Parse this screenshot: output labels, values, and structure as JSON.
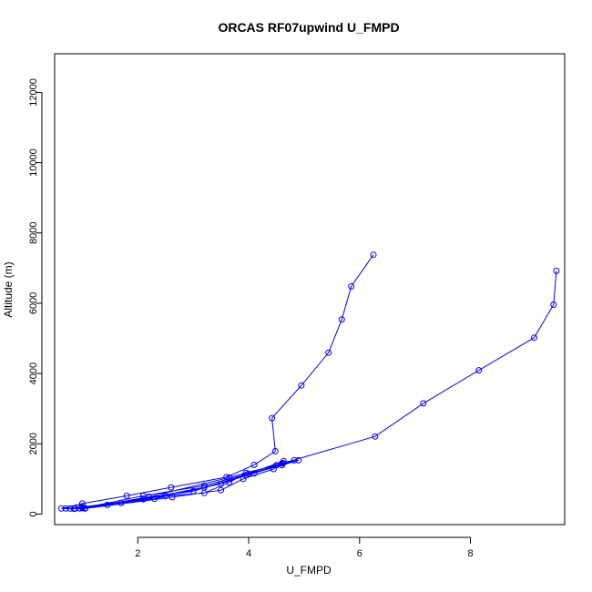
{
  "chart_data": {
    "type": "scatter",
    "title": "ORCAS RF07upwind U_FMPD",
    "xlabel": "U_FMPD",
    "ylabel": "Altitude (m)",
    "xlim": [
      0.5,
      9.7
    ],
    "ylim": [
      -300,
      13100
    ],
    "x_ticks": [
      2,
      4,
      6,
      8
    ],
    "y_ticks": [
      0,
      2000,
      4000,
      6000,
      8000,
      10000,
      12000
    ],
    "series": [
      {
        "color": "#0000ff",
        "line": true,
        "marker": "open-circle",
        "points": [
          [
            6.25,
            7380
          ],
          [
            5.85,
            6480
          ],
          [
            5.68,
            5540
          ],
          [
            5.44,
            4590
          ],
          [
            4.95,
            3660
          ],
          [
            4.42,
            2730
          ],
          [
            4.48,
            1790
          ],
          [
            4.1,
            1400
          ],
          [
            3.6,
            1050
          ],
          [
            2.6,
            760
          ],
          [
            1.8,
            520
          ],
          [
            1.0,
            300
          ],
          [
            0.62,
            160
          ],
          [
            0.85,
            150
          ],
          [
            1.45,
            260
          ],
          [
            2.1,
            420
          ],
          [
            3.0,
            650
          ],
          [
            3.95,
            1110
          ],
          [
            4.6,
            1390
          ],
          [
            4.9,
            1530
          ],
          [
            4.5,
            1390
          ],
          [
            3.5,
            860
          ],
          [
            2.3,
            430
          ],
          [
            1.0,
            190
          ],
          [
            0.7,
            160
          ],
          [
            1.05,
            160
          ],
          [
            2.62,
            480
          ],
          [
            3.5,
            680
          ],
          [
            3.9,
            1000
          ],
          [
            4.45,
            1280
          ],
          [
            4.63,
            1510
          ],
          [
            4.0,
            1150
          ],
          [
            3.2,
            810
          ],
          [
            2.1,
            520
          ],
          [
            1.0,
            170
          ],
          [
            0.78,
            155
          ],
          [
            1.0,
            200
          ],
          [
            2.5,
            510
          ],
          [
            3.2,
            600
          ],
          [
            3.65,
            900
          ],
          [
            3.95,
            1170
          ],
          [
            4.6,
            1440
          ],
          [
            4.82,
            1530
          ],
          [
            4.1,
            1160
          ],
          [
            3.2,
            760
          ],
          [
            1.7,
            320
          ],
          [
            0.95,
            165
          ],
          [
            0.87,
            155
          ],
          [
            1.05,
            170
          ],
          [
            2.2,
            490
          ],
          [
            3.65,
            1040
          ],
          [
            4.62,
            1450
          ],
          [
            6.28,
            2210
          ],
          [
            7.15,
            3150
          ],
          [
            8.15,
            4090
          ],
          [
            9.15,
            5020
          ],
          [
            9.5,
            5960
          ],
          [
            9.55,
            6920
          ]
        ]
      }
    ]
  }
}
